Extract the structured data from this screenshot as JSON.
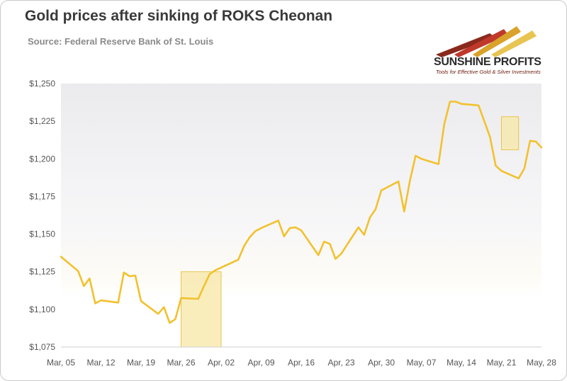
{
  "header": {
    "title": "Gold prices after sinking of ROKS Cheonan",
    "source": "Source: Federal Reserve Bank of St. Louis"
  },
  "logo": {
    "name": "SUNSHINE PROFITS",
    "tagline": "Tools for Effective Gold & Silver Investments"
  },
  "colors": {
    "line": "#f2c12e",
    "highlight_fill": "#f7e7a6",
    "highlight_stroke": "#e8c453"
  },
  "chart_data": {
    "type": "line",
    "title": "Gold prices after sinking of ROKS Cheonan",
    "xlabel": "",
    "ylabel": "",
    "ylim": [
      1075,
      1250
    ],
    "yticks": [
      1075,
      1100,
      1125,
      1150,
      1175,
      1200,
      1225,
      1250
    ],
    "ytick_labels": [
      "$1,075",
      "$1,100",
      "$1,125",
      "$1,150",
      "$1,175",
      "$1,200",
      "$1,225",
      "$1,250"
    ],
    "xlim": [
      "2010-03-05",
      "2010-05-28"
    ],
    "xtick_labels": [
      "Mar, 05",
      "Mar, 12",
      "Mar, 19",
      "Mar, 26",
      "Apr, 02",
      "Apr, 09",
      "Apr, 16",
      "Apr, 23",
      "Apr, 30",
      "May, 07",
      "May, 14",
      "May, 21",
      "May, 28"
    ],
    "xtick_dates": [
      "2010-03-05",
      "2010-03-12",
      "2010-03-19",
      "2010-03-26",
      "2010-04-02",
      "2010-04-09",
      "2010-04-16",
      "2010-04-23",
      "2010-04-30",
      "2010-05-07",
      "2010-05-14",
      "2010-05-21",
      "2010-05-28"
    ],
    "grid": false,
    "series": [
      {
        "x": [
          "2010-03-05",
          "2010-03-08",
          "2010-03-09",
          "2010-03-10",
          "2010-03-11",
          "2010-03-12",
          "2010-03-15",
          "2010-03-16",
          "2010-03-17",
          "2010-03-18",
          "2010-03-19",
          "2010-03-22",
          "2010-03-23",
          "2010-03-24",
          "2010-03-25",
          "2010-03-26",
          "2010-03-29",
          "2010-03-30",
          "2010-03-31",
          "2010-04-01",
          "2010-04-05",
          "2010-04-06",
          "2010-04-07",
          "2010-04-08",
          "2010-04-09",
          "2010-04-12",
          "2010-04-13",
          "2010-04-14",
          "2010-04-15",
          "2010-04-16",
          "2010-04-19",
          "2010-04-20",
          "2010-04-21",
          "2010-04-22",
          "2010-04-23",
          "2010-04-26",
          "2010-04-27",
          "2010-04-28",
          "2010-04-29",
          "2010-04-30",
          "2010-05-03",
          "2010-05-04",
          "2010-05-05",
          "2010-05-06",
          "2010-05-07",
          "2010-05-10",
          "2010-05-11",
          "2010-05-12",
          "2010-05-13",
          "2010-05-14",
          "2010-05-17",
          "2010-05-18",
          "2010-05-19",
          "2010-05-20",
          "2010-05-21",
          "2010-05-24",
          "2010-05-25",
          "2010-05-26",
          "2010-05-27",
          "2010-05-28"
        ],
        "values": [
          1135,
          1125.5,
          1115.5,
          1120.5,
          1104,
          1106,
          1104.5,
          1124.5,
          1122,
          1122.5,
          1105.5,
          1097,
          1101.5,
          1091,
          1093.5,
          1107.5,
          1107,
          1115.5,
          1123.5,
          1126,
          1133,
          1142,
          1148,
          1152,
          1154,
          1159,
          1148.5,
          1154,
          1154.5,
          1152.5,
          1136,
          1145,
          1143.5,
          1133.5,
          1137,
          1154.5,
          1149.5,
          1161,
          1166.5,
          1179,
          1185,
          1165,
          1185.5,
          1202,
          1200,
          1196.5,
          1223,
          1238,
          1238,
          1236.5,
          1235.5,
          1225,
          1214.5,
          1195.5,
          1192,
          1187,
          1193.5,
          1212,
          1211.5,
          1207.5
        ]
      }
    ],
    "highlights": [
      {
        "x_start": "2010-03-26",
        "x_end": "2010-04-02",
        "y_start": 1075,
        "y_end": 1125
      },
      {
        "x_start": "2010-05-21",
        "x_end": "2010-05-24",
        "y_start": 1206,
        "y_end": 1228
      }
    ]
  }
}
